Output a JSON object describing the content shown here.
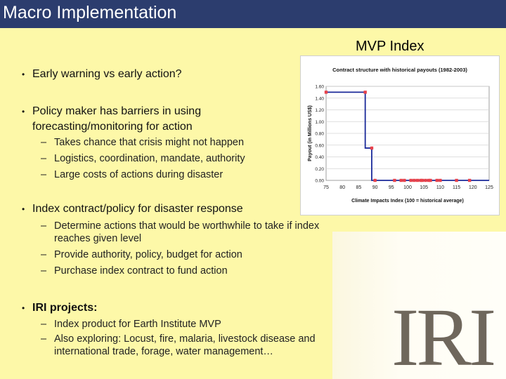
{
  "header": {
    "title": "Macro Implementation"
  },
  "figure_label": "MVP Index",
  "bullets": [
    {
      "text": "Early warning vs early action?",
      "bold": false,
      "subs": []
    },
    {
      "text": "Policy maker has barriers in using forecasting/monitoring for action",
      "bold": false,
      "subs": [
        "Takes chance that crisis might not happen",
        "Logistics, coordination, mandate, authority",
        "Large costs of actions during disaster"
      ]
    },
    {
      "text": "Index contract/policy for disaster response",
      "bold": false,
      "subs": [
        "Determine actions that would be worthwhile to take if index reaches given level",
        "Provide authority, policy, budget for action",
        "Purchase index contract to fund action"
      ]
    },
    {
      "text": "IRI projects:",
      "bold": true,
      "subs": [
        "Index product for Earth Institute MVP",
        "Also exploring: Locust, fire, malaria, livestock disease and international trade, forage, water management…"
      ]
    }
  ],
  "chart_data": {
    "type": "line",
    "title": "Contract structure with historical payouts (1982-2003)",
    "xlabel": "Climate Impacts Index (100 = historical average)",
    "ylabel": "Payout (in Millions US$)",
    "xlim": [
      75,
      125
    ],
    "ylim": [
      0,
      1.6
    ],
    "xticks": [
      75,
      80,
      85,
      90,
      95,
      100,
      105,
      110,
      115,
      120,
      125
    ],
    "yticks": [
      "0.00",
      "0.20",
      "0.40",
      "0.60",
      "0.80",
      "1.00",
      "1.20",
      "1.40",
      "1.60"
    ],
    "series": [
      {
        "values": [
          [
            75,
            1.5
          ],
          [
            87,
            1.5
          ],
          [
            87,
            0.55
          ],
          [
            89,
            0.55
          ],
          [
            89,
            0
          ],
          [
            125,
            0
          ]
        ],
        "color": "#1b2a9a"
      }
    ],
    "points": [
      [
        75,
        1.5
      ],
      [
        87,
        1.5
      ],
      [
        89,
        0.55
      ],
      [
        90,
        0
      ],
      [
        96,
        0
      ],
      [
        98,
        0
      ],
      [
        99,
        0
      ],
      [
        101,
        0
      ],
      [
        102,
        0
      ],
      [
        103,
        0
      ],
      [
        104,
        0
      ],
      [
        104.5,
        0
      ],
      [
        105.5,
        0
      ],
      [
        106.5,
        0
      ],
      [
        107,
        0
      ],
      [
        109,
        0
      ],
      [
        110,
        0
      ],
      [
        115,
        0
      ],
      [
        119,
        0
      ]
    ],
    "point_color": "#e8414a",
    "grid": true
  },
  "logo": {
    "text": "IRI"
  }
}
